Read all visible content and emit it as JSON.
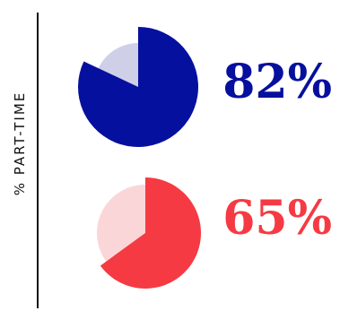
{
  "axis_label": "% PART-TIME",
  "chart_data": {
    "type": "pie",
    "ylabel": "% PART-TIME",
    "items": [
      {
        "value": 82,
        "label": "82%",
        "color": "#06109e",
        "remainder_color": "#cfcfe8"
      },
      {
        "value": 65,
        "label": "65%",
        "color": "#f53a43",
        "remainder_color": "#fbd6d8"
      }
    ]
  }
}
